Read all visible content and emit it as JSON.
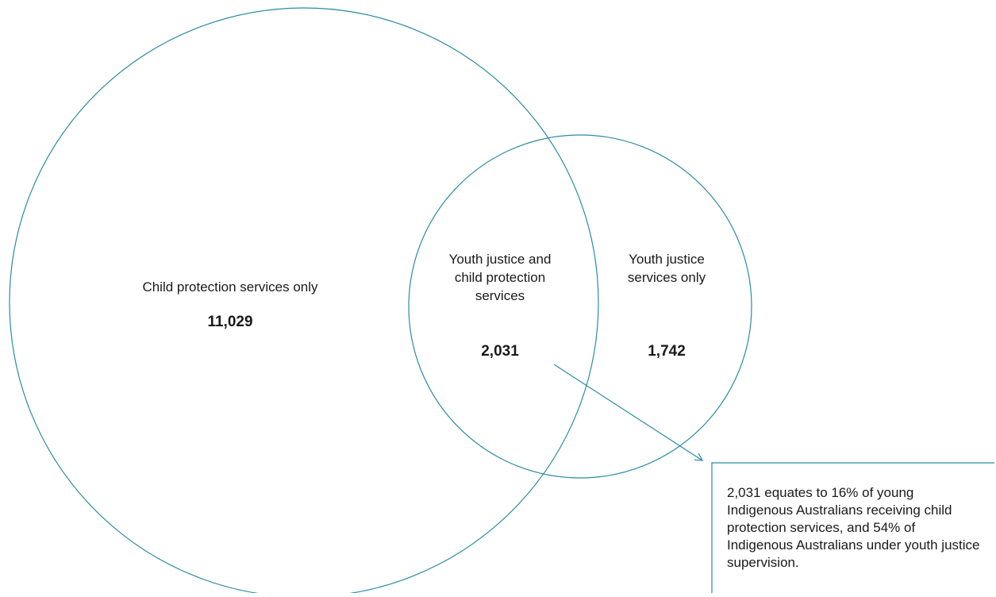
{
  "colors": {
    "stroke": "#2b8ca3",
    "text": "#1a1a1a"
  },
  "diagram": {
    "type": "venn",
    "sets": {
      "child_protection_only": {
        "label": "Child protection services only",
        "value": "11,029"
      },
      "both": {
        "label": "Youth justice and child protection services",
        "value": "2,031"
      },
      "youth_justice_only": {
        "label": "Youth justice services only",
        "value": "1,742"
      }
    },
    "annotation": {
      "text": "2,031 equates to 16% of young Indigenous Australians receiving child protection services, and 54% of Indigenous Australians under youth justice supervision."
    }
  }
}
